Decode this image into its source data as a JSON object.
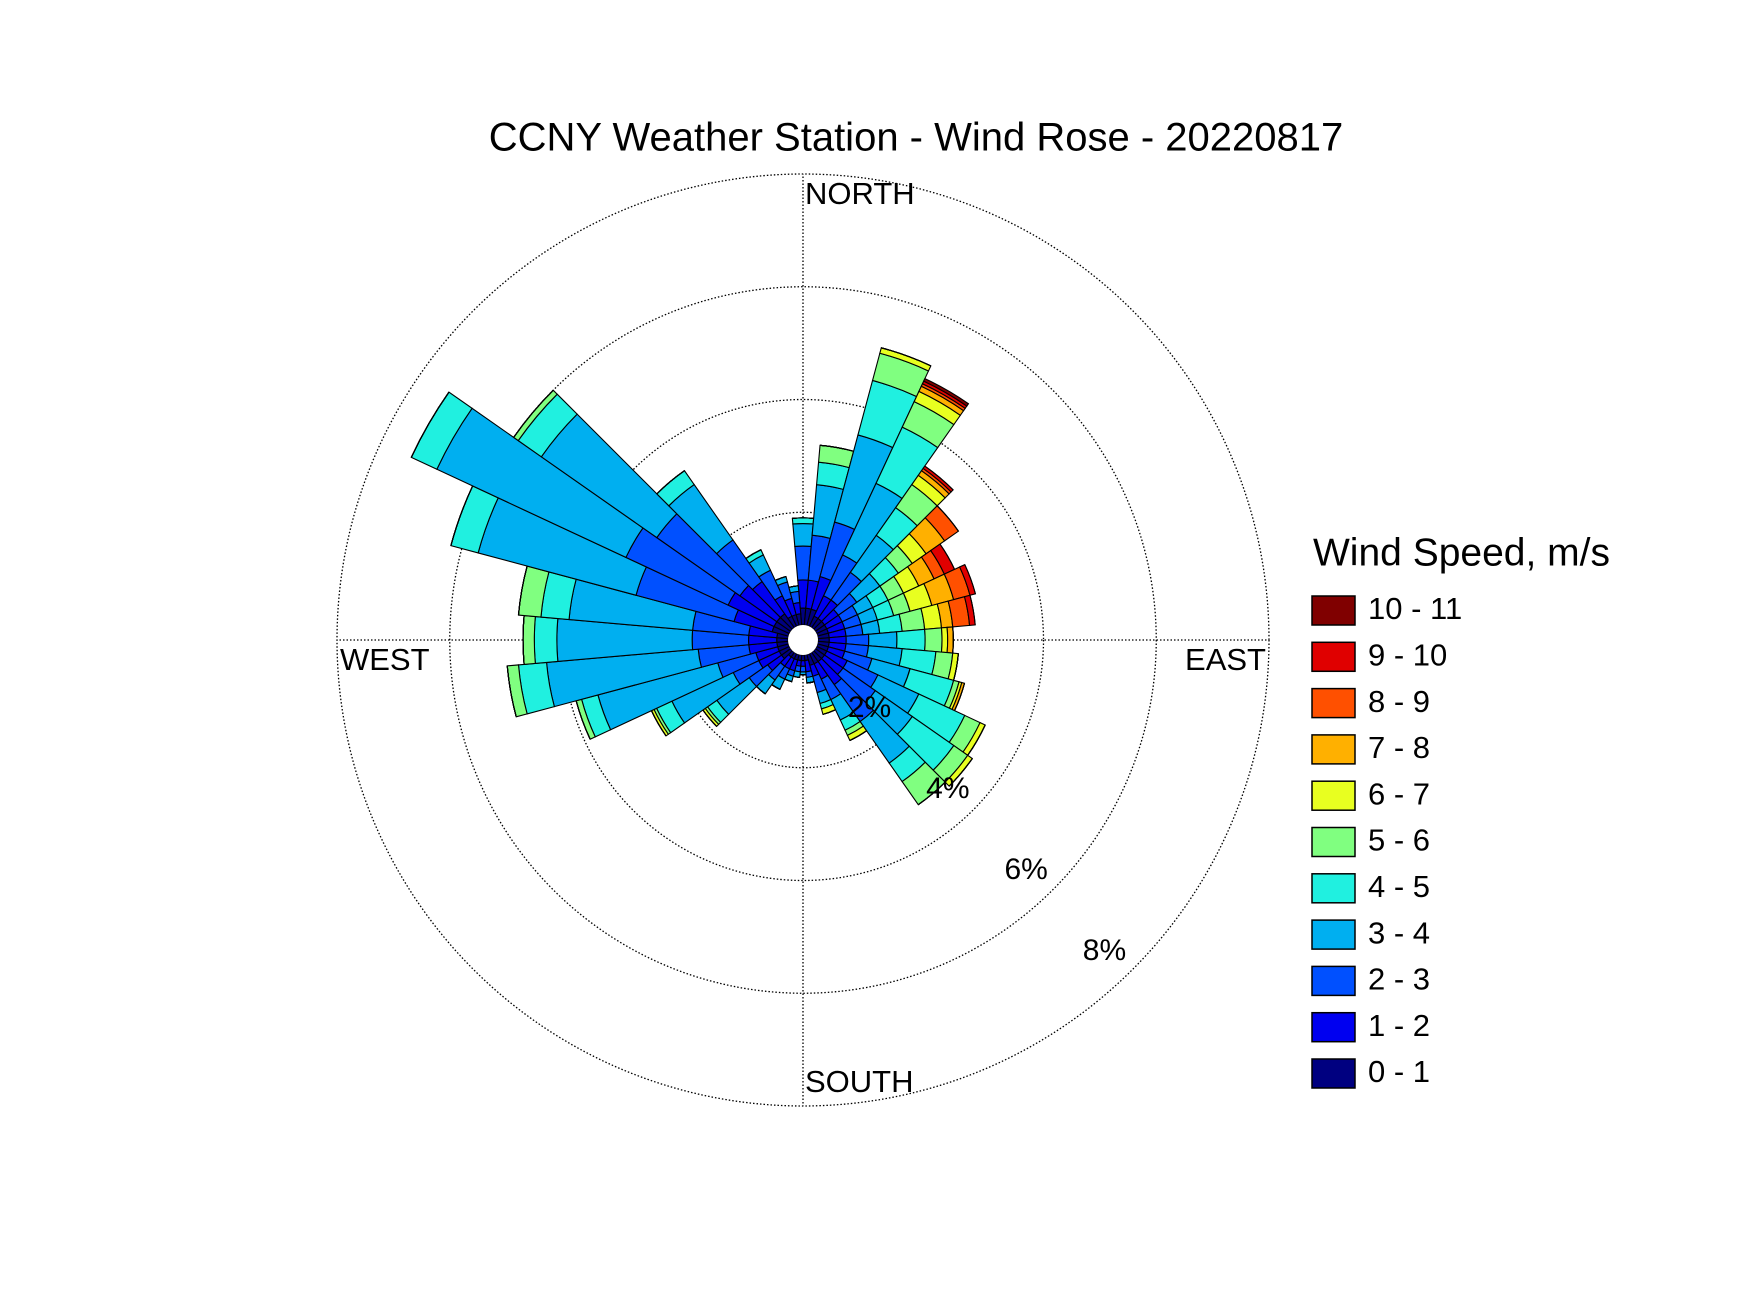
{
  "chart_data": {
    "type": "windrose",
    "title": "CCNY Weather Station - Wind Rose - 20220817",
    "legend_title": "Wind Speed, m/s",
    "x": [
      0,
      10,
      20,
      30,
      40,
      50,
      60,
      70,
      80,
      90,
      100,
      110,
      120,
      130,
      140,
      150,
      160,
      170,
      180,
      190,
      200,
      210,
      220,
      230,
      240,
      250,
      260,
      270,
      280,
      290,
      300,
      310,
      320,
      330,
      340,
      350
    ],
    "xlim": [
      0,
      360
    ],
    "xticks": [
      {
        "value": 0,
        "label": "NORTH"
      },
      {
        "value": 90,
        "label": "EAST"
      },
      {
        "value": 180,
        "label": "SOUTH"
      },
      {
        "value": 270,
        "label": "WEST"
      }
    ],
    "ylim": [
      0,
      8
    ],
    "yticks": [
      {
        "value": 2,
        "label": "2%"
      },
      {
        "value": 4,
        "label": "4%"
      },
      {
        "value": 6,
        "label": "6%"
      },
      {
        "value": 8,
        "label": "8%"
      }
    ],
    "grid": true,
    "legend_position": "right",
    "series": [
      {
        "name": "0 - 1",
        "color": "#000080",
        "values": [
          0.3,
          0.3,
          0.3,
          0.2,
          0.2,
          0.2,
          0.2,
          0.2,
          0.2,
          0.2,
          0.2,
          0.2,
          0.2,
          0.2,
          0.2,
          0.2,
          0.2,
          0.1,
          0.1,
          0.1,
          0.1,
          0.1,
          0.1,
          0.2,
          0.2,
          0.2,
          0.2,
          0.2,
          0.2,
          0.3,
          0.3,
          0.3,
          0.3,
          0.2,
          0.2,
          0.2
        ]
      },
      {
        "name": "1 - 2",
        "color": "#0000f0",
        "values": [
          0.5,
          0.5,
          0.6,
          0.4,
          0.4,
          0.3,
          0.3,
          0.3,
          0.3,
          0.3,
          0.3,
          0.3,
          0.4,
          0.4,
          0.5,
          0.3,
          0.2,
          0.2,
          0.1,
          0.1,
          0.2,
          0.2,
          0.2,
          0.3,
          0.4,
          0.4,
          0.5,
          0.5,
          0.5,
          0.7,
          0.9,
          0.8,
          0.7,
          0.4,
          0.3,
          0.2
        ]
      },
      {
        "name": "2 - 3",
        "color": "#0050ff",
        "values": [
          0.6,
          0.8,
          1.0,
          0.8,
          0.6,
          0.4,
          0.3,
          0.3,
          0.3,
          0.4,
          0.4,
          0.5,
          0.6,
          0.7,
          0.8,
          0.4,
          0.3,
          0.1,
          0.1,
          0.1,
          0.1,
          0.2,
          0.3,
          0.4,
          0.5,
          0.7,
          0.9,
          1.0,
          1.0,
          1.8,
          2.0,
          1.8,
          0.9,
          0.5,
          0.3,
          0.2
        ]
      },
      {
        "name": "3 - 4",
        "color": "#00aff0",
        "values": [
          0.4,
          0.9,
          1.6,
          1.4,
          0.8,
          0.5,
          0.3,
          0.3,
          0.3,
          0.5,
          0.6,
          0.7,
          0.8,
          0.8,
          0.9,
          0.4,
          0.2,
          0.1,
          0.05,
          0.1,
          0.1,
          0.2,
          0.3,
          0.7,
          1.2,
          2.2,
          2.7,
          2.4,
          2.2,
          2.9,
          3.7,
          2.5,
          1.2,
          0.3,
          0.1,
          0.1
        ]
      },
      {
        "name": "4 - 5",
        "color": "#20f0e0",
        "values": [
          0.1,
          0.4,
          1.0,
          1.1,
          0.6,
          0.4,
          0.3,
          0.3,
          0.4,
          0.5,
          0.6,
          0.8,
          0.9,
          0.9,
          0.4,
          0.2,
          0.1,
          0,
          0,
          0,
          0,
          0,
          0,
          0.2,
          0.3,
          0.3,
          0.5,
          0.4,
          0.5,
          0.5,
          0.5,
          0.5,
          0.3,
          0.1,
          0,
          0
        ]
      },
      {
        "name": "5 - 6",
        "color": "#80ff80",
        "values": [
          0,
          0.3,
          0.5,
          0.5,
          0.5,
          0.3,
          0.3,
          0.3,
          0.4,
          0.3,
          0.3,
          0.1,
          0.3,
          0.3,
          0.5,
          0.1,
          0,
          0,
          0,
          0,
          0,
          0,
          0,
          0.05,
          0.05,
          0.1,
          0.2,
          0.2,
          0.4,
          0,
          0,
          0.1,
          0,
          0,
          0,
          0
        ]
      },
      {
        "name": "6 - 7",
        "color": "#e8ff20",
        "values": [
          0,
          0,
          0.1,
          0.2,
          0.2,
          0.3,
          0.3,
          0.4,
          0.3,
          0.1,
          0.1,
          0.05,
          0.1,
          0.1,
          0,
          0.1,
          0.1,
          0,
          0,
          0,
          0,
          0,
          0,
          0.05,
          0.05,
          0,
          0,
          0,
          0,
          0,
          0,
          0,
          0,
          0,
          0,
          0
        ]
      },
      {
        "name": "7 - 8",
        "color": "#ffb000",
        "values": [
          0,
          0,
          0,
          0.1,
          0.1,
          0.4,
          0.3,
          0.4,
          0.2,
          0.1,
          0,
          0.05,
          0,
          0,
          0,
          0,
          0,
          0,
          0,
          0,
          0,
          0,
          0,
          0,
          0,
          0,
          0,
          0,
          0,
          0,
          0,
          0,
          0,
          0,
          0,
          0
        ]
      },
      {
        "name": "8 - 9",
        "color": "#ff5000",
        "values": [
          0,
          0,
          0,
          0.05,
          0.05,
          0.3,
          0.2,
          0.3,
          0.3,
          0,
          0,
          0,
          0,
          0,
          0,
          0,
          0,
          0,
          0,
          0,
          0,
          0,
          0,
          0,
          0,
          0,
          0,
          0,
          0,
          0,
          0,
          0,
          0,
          0,
          0,
          0
        ]
      },
      {
        "name": "9 - 10",
        "color": "#e00000",
        "values": [
          0,
          0,
          0,
          0.05,
          0.05,
          0,
          0.2,
          0.1,
          0.1,
          0,
          0,
          0,
          0,
          0,
          0,
          0,
          0,
          0,
          0,
          0,
          0,
          0,
          0,
          0,
          0,
          0,
          0,
          0,
          0,
          0,
          0,
          0,
          0,
          0,
          0,
          0
        ]
      },
      {
        "name": "10 - 11",
        "color": "#800000",
        "values": [
          0,
          0,
          0,
          0.05,
          0,
          0,
          0,
          0,
          0,
          0,
          0,
          0,
          0,
          0,
          0,
          0,
          0,
          0,
          0,
          0,
          0,
          0,
          0,
          0,
          0,
          0,
          0,
          0,
          0,
          0,
          0,
          0,
          0,
          0,
          0,
          0
        ]
      }
    ]
  }
}
